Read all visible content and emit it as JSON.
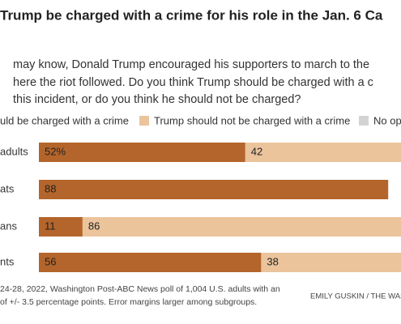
{
  "chart_data": {
    "type": "bar",
    "orientation": "horizontal",
    "stacked": true,
    "title": "Trump be charged with a crime for his role in the Jan. 6 Ca",
    "subtitle": [
      "may know, Donald Trump encouraged his supporters to march to the",
      "here the riot followed. Do you think Trump should be charged with a c",
      "this incident, or do you think he should not be charged?"
    ],
    "categories": [
      "adults",
      "ats",
      "ans",
      "nts"
    ],
    "series": [
      {
        "name": "uld be charged with a crime",
        "color": "#b4652b",
        "values": [
          52,
          88,
          11,
          56
        ],
        "value_labels": [
          "52%",
          "88",
          "11",
          "56"
        ]
      },
      {
        "name": "Trump should not be charged with a crime",
        "color": "#ebc49c",
        "values": [
          42,
          null,
          86,
          38
        ]
      },
      {
        "name": "No opi",
        "color": "#d3d3d3",
        "values": [
          null,
          null,
          null,
          null
        ]
      }
    ],
    "footnote": [
      "24-28, 2022, Washington Post-ABC News poll of 1,004 U.S. adults with an",
      "of +/- 3.5 percentage points. Error margins larger among subgroups."
    ],
    "credit": "EMILY GUSKIN / THE WAS"
  }
}
